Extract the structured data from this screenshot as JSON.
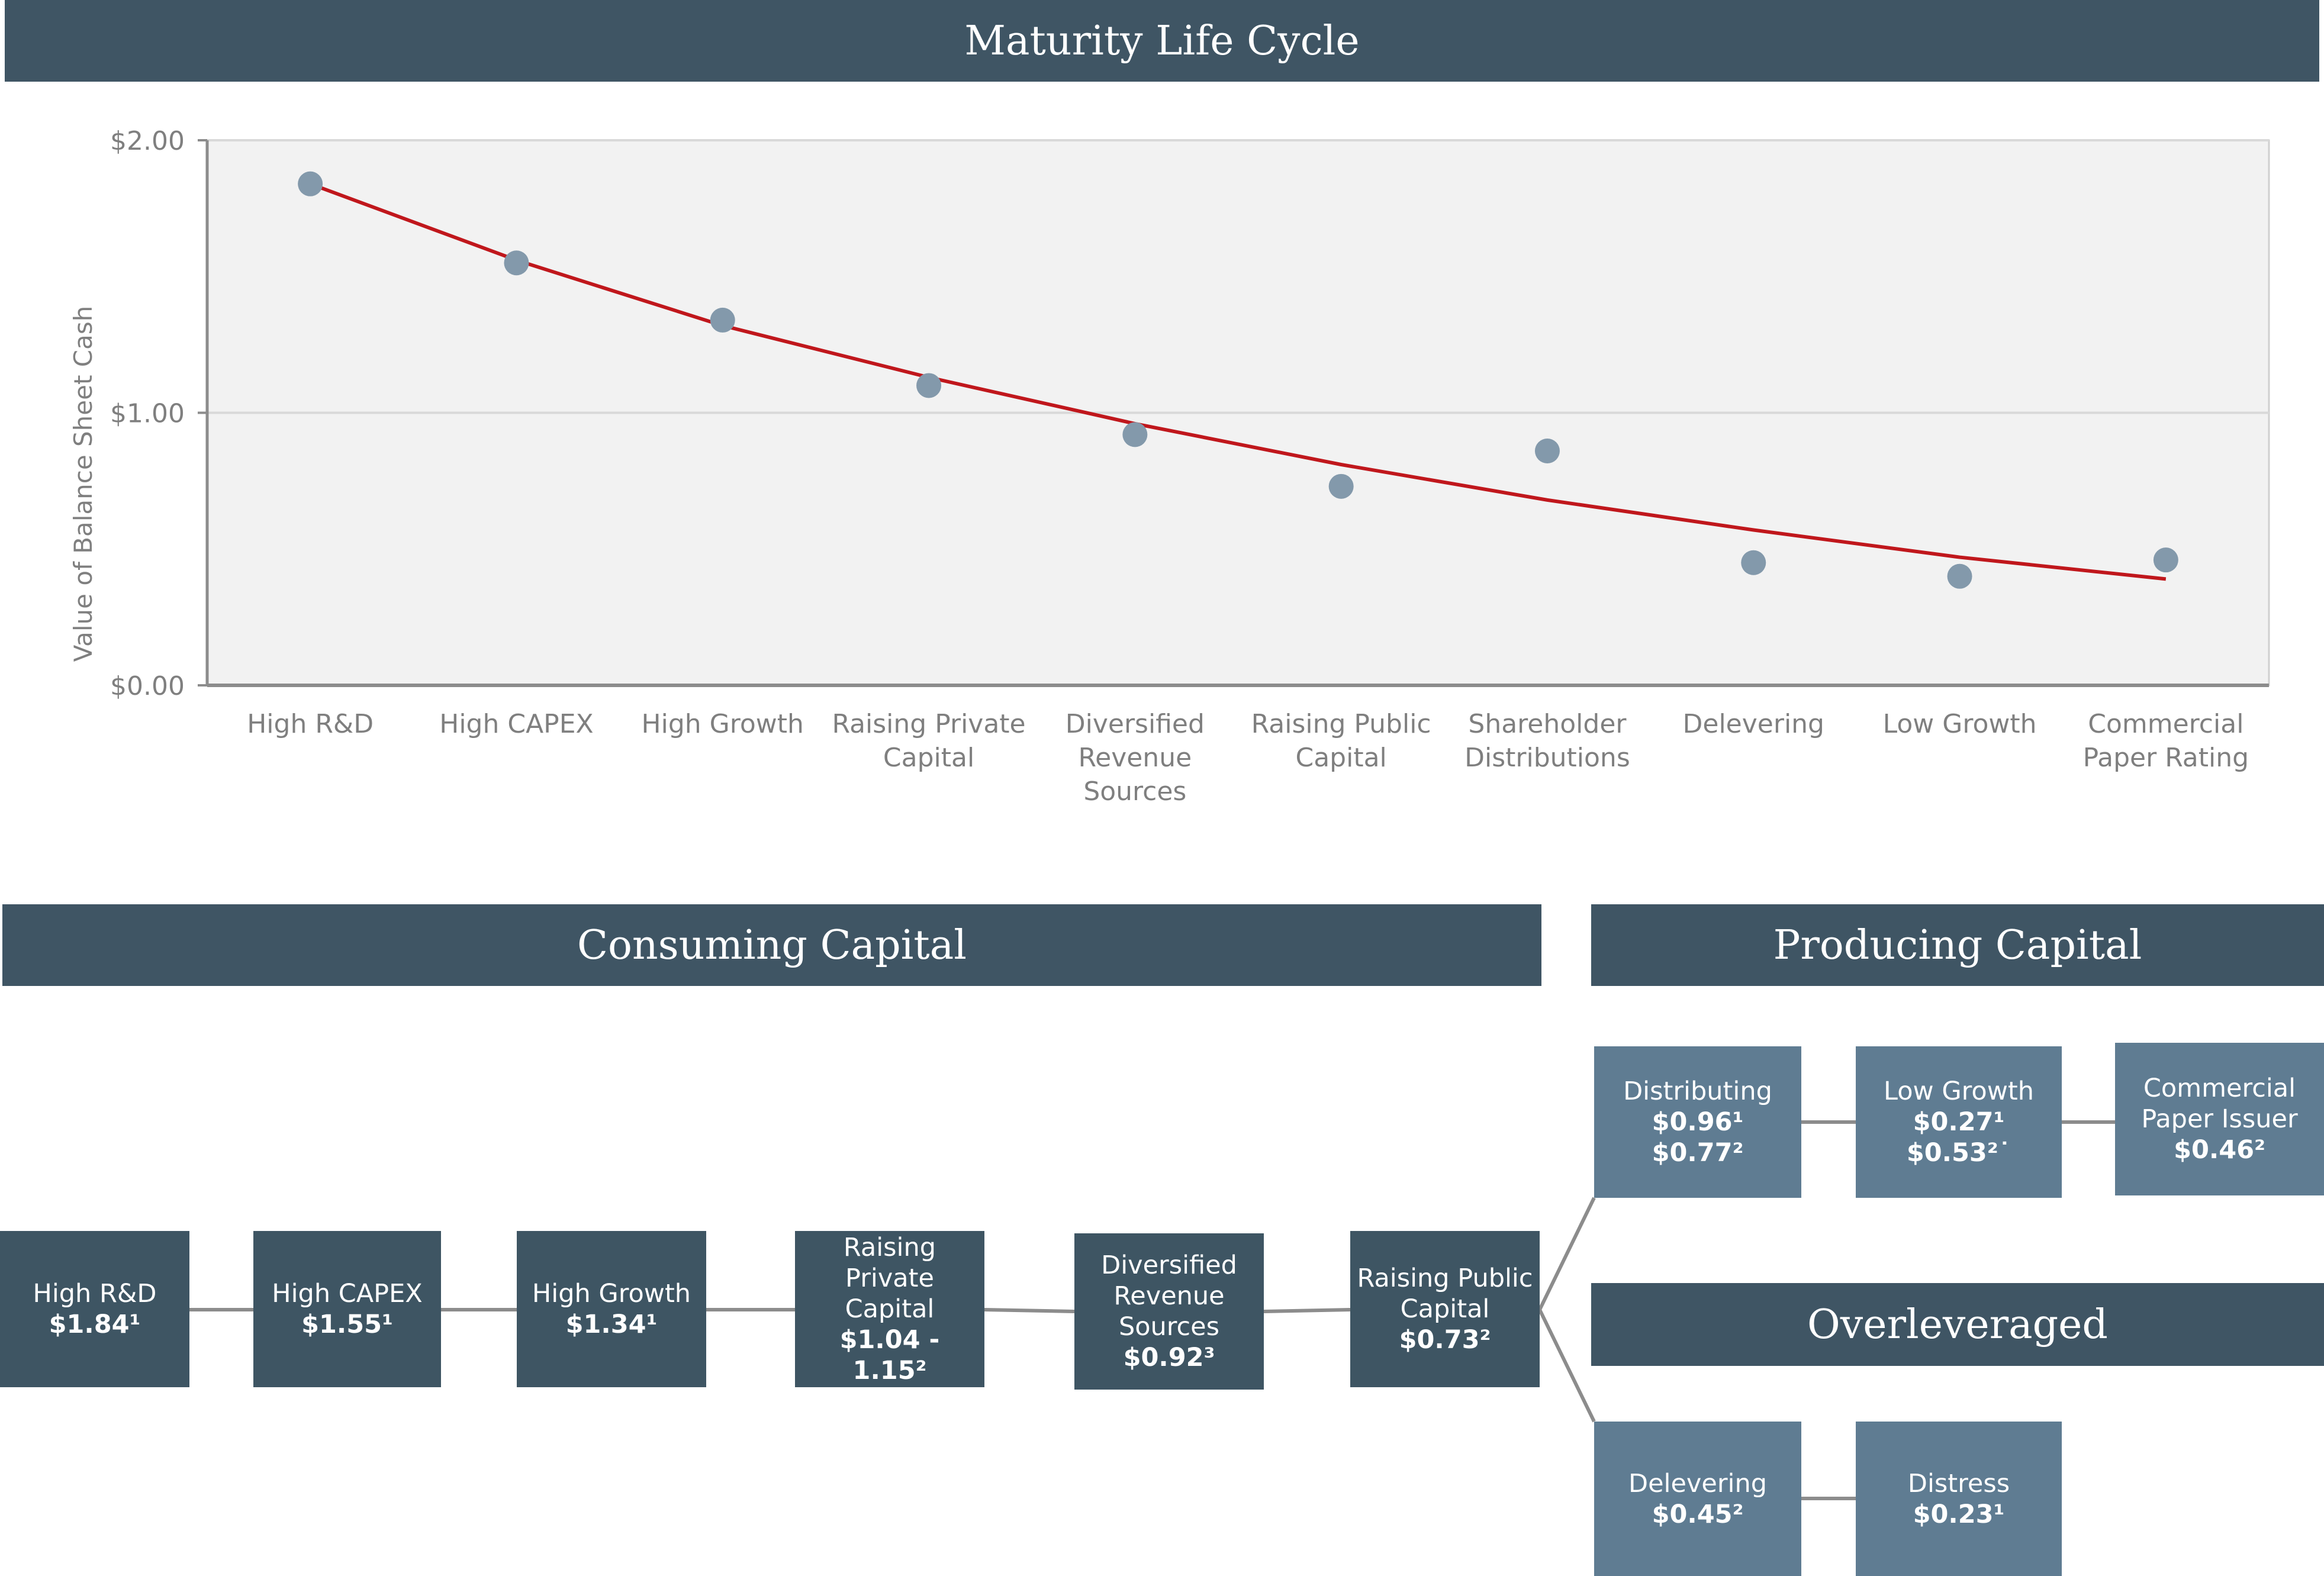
{
  "title": "Maturity Life Cycle",
  "chart_data": {
    "type": "scatter",
    "title": "Maturity Life Cycle",
    "ylabel": "Value of Balance Sheet Cash",
    "xlabel": "",
    "ylim": [
      0,
      2
    ],
    "y_ticks": [
      "$0.00",
      "$1.00",
      "$2.00"
    ],
    "y_tick_values": [
      0,
      1,
      2
    ],
    "grid": true,
    "categories": [
      [
        "High R&D"
      ],
      [
        "High CAPEX"
      ],
      [
        "High Growth"
      ],
      [
        "Raising Private",
        "Capital"
      ],
      [
        "Diversified",
        "Revenue",
        "Sources"
      ],
      [
        "Raising Public",
        "Capital"
      ],
      [
        "Shareholder",
        "Distributions"
      ],
      [
        "Delevering"
      ],
      [
        "Low Growth"
      ],
      [
        "Commercial",
        "Paper Rating"
      ]
    ],
    "values": [
      1.84,
      1.55,
      1.34,
      1.1,
      0.92,
      0.73,
      0.86,
      0.45,
      0.4,
      0.46
    ],
    "trendline": [
      1.84,
      1.56,
      1.32,
      1.13,
      0.96,
      0.81,
      0.68,
      0.57,
      0.47,
      0.39
    ],
    "colors": {
      "points": "#8399ab",
      "trend": "#c0171c",
      "plot_bg": "#f2f2f2",
      "grid": "#d9d9d9"
    }
  },
  "sections": {
    "consuming": "Consuming Capital",
    "producing": "Producing Capital",
    "overleveraged": "Overleveraged"
  },
  "stages": [
    {
      "label": [
        "High R&D"
      ],
      "value": "$1.84¹"
    },
    {
      "label": [
        "High CAPEX"
      ],
      "value": "$1.55¹"
    },
    {
      "label": [
        "High Growth"
      ],
      "value": "$1.34¹"
    },
    {
      "label": [
        "Raising Private",
        "Capital"
      ],
      "value": "$1.04 - 1.15²"
    },
    {
      "label": [
        "Diversified",
        "Revenue",
        "Sources"
      ],
      "value": "$0.92³"
    },
    {
      "label": [
        "Raising Public",
        "Capital"
      ],
      "value": "$0.73²"
    }
  ],
  "producing_stages": [
    {
      "label": [
        "Distributing"
      ],
      "values": [
        "$0.96¹",
        "$0.77²"
      ]
    },
    {
      "label": [
        "Low Growth"
      ],
      "values": [
        "$0.27¹",
        "$0.53²˙"
      ]
    },
    {
      "label": [
        "Commercial",
        "Paper Issuer"
      ],
      "values": [
        "$0.46²"
      ]
    }
  ],
  "overleveraged_stages": [
    {
      "label": [
        "Delevering"
      ],
      "values": [
        "$0.45²"
      ]
    },
    {
      "label": [
        "Distress"
      ],
      "values": [
        "$0.23¹"
      ]
    }
  ],
  "colors": {
    "banner": "#3f5564",
    "dark_box": "#3e5563",
    "light_box": "#5f7c92",
    "connector": "#8c8c8c"
  }
}
